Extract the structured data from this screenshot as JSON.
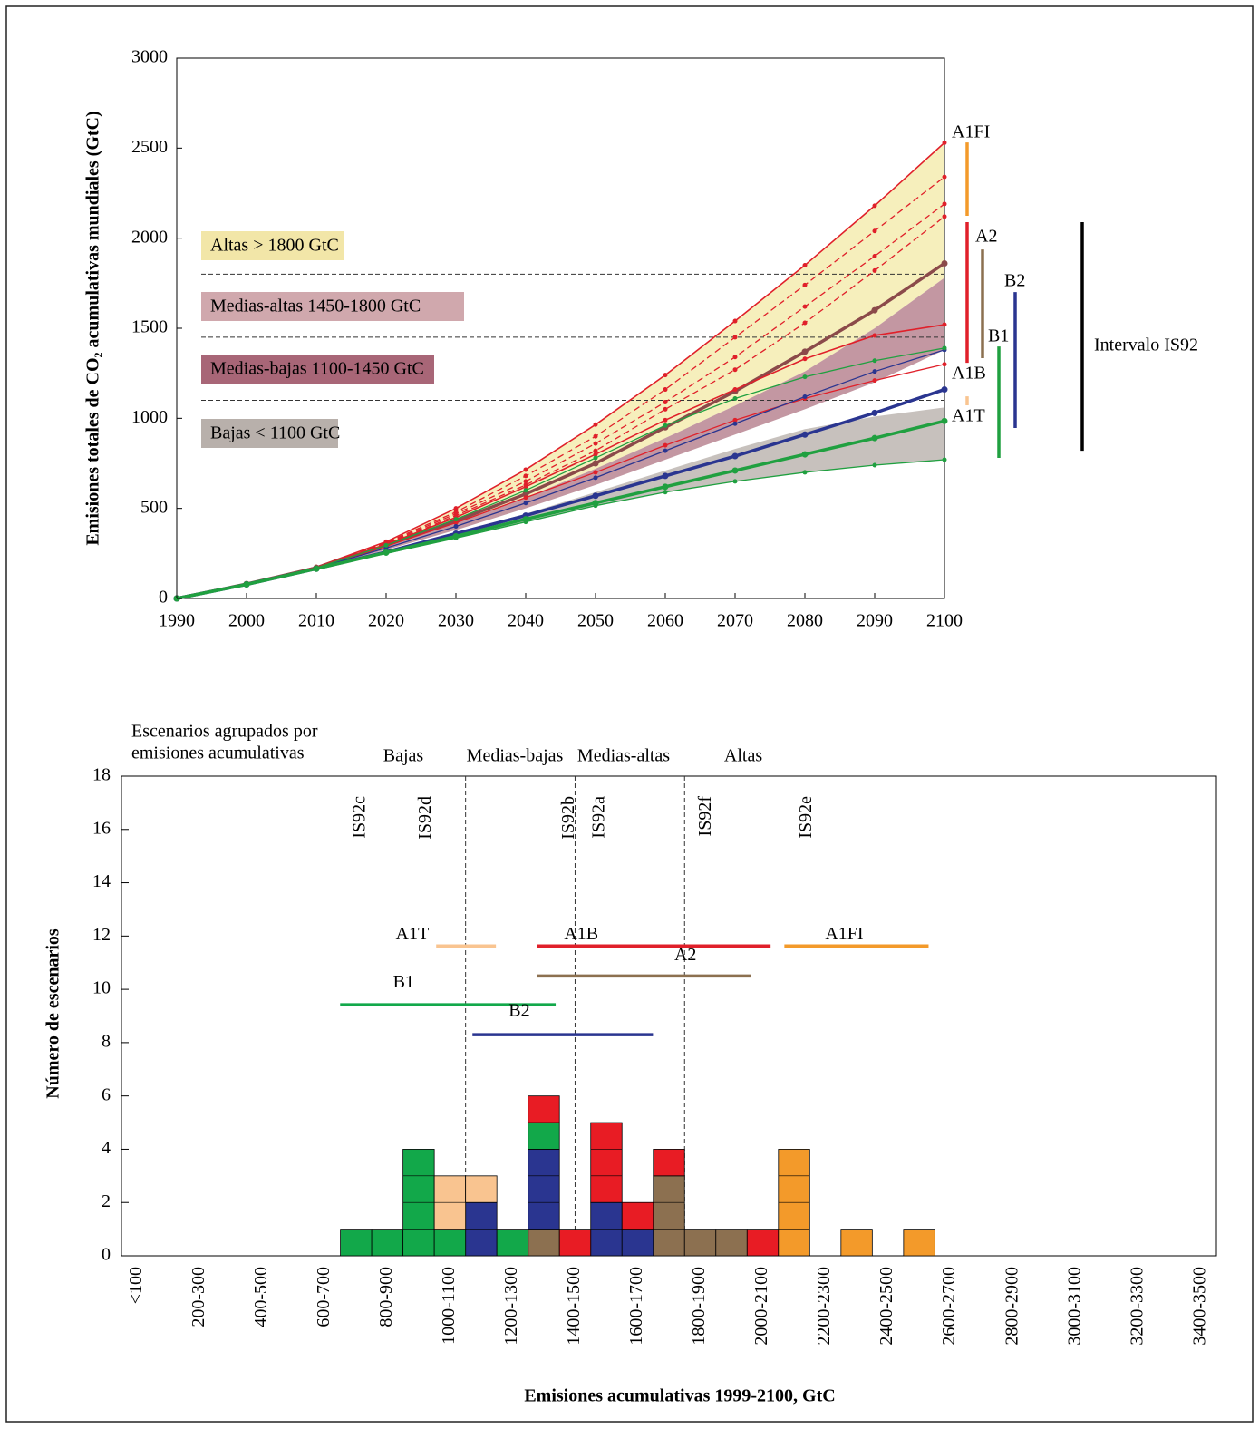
{
  "chart_data": [
    {
      "type": "line",
      "ylabel": "Emisiones totales de CO₂ acumulativas mundiales (GtC)",
      "x": [
        1990,
        2000,
        2010,
        2020,
        2030,
        2040,
        2050,
        2060,
        2070,
        2080,
        2090,
        2100
      ],
      "xlim": [
        1990,
        2100
      ],
      "xticks": [
        1990,
        2000,
        2010,
        2020,
        2030,
        2040,
        2050,
        2060,
        2070,
        2080,
        2090,
        2100
      ],
      "ylim": [
        0,
        3000
      ],
      "yticks": [
        0,
        500,
        1000,
        1500,
        2000,
        2500,
        3000
      ],
      "bands": [
        {
          "color": "#f4ecb0",
          "upper": [
            0,
            80,
            175,
            315,
            500,
            715,
            965,
            1240,
            1540,
            1850,
            2180,
            2530
          ],
          "lower": [
            0,
            79,
            168,
            290,
            420,
            560,
            720,
            890,
            1070,
            1260,
            1500,
            1780
          ]
        },
        {
          "color": "#b98592",
          "upper": [
            0,
            79,
            168,
            290,
            420,
            560,
            720,
            890,
            1070,
            1260,
            1500,
            1780
          ],
          "lower": [
            0,
            78,
            166,
            270,
            380,
            500,
            630,
            770,
            910,
            1050,
            1200,
            1380
          ]
        },
        {
          "color": "#bdb6b1",
          "upper": [
            0,
            78,
            166,
            262,
            365,
            470,
            590,
            710,
            830,
            940,
            1010,
            1060
          ],
          "lower": [
            0,
            78,
            165,
            250,
            335,
            425,
            515,
            590,
            650,
            700,
            740,
            770
          ]
        }
      ],
      "series": [
        {
          "color": "#e0202a",
          "width": 1.6,
          "dashed": false,
          "values": [
            0,
            80,
            175,
            315,
            500,
            715,
            965,
            1240,
            1540,
            1850,
            2180,
            2530
          ]
        },
        {
          "color": "#e0202a",
          "width": 1.3,
          "dashed": true,
          "values": [
            0,
            80,
            175,
            310,
            480,
            680,
            900,
            1160,
            1450,
            1740,
            2040,
            2340
          ]
        },
        {
          "color": "#e0202a",
          "width": 1.3,
          "dashed": true,
          "values": [
            0,
            80,
            172,
            305,
            470,
            650,
            860,
            1090,
            1340,
            1620,
            1900,
            2190
          ]
        },
        {
          "color": "#e0202a",
          "width": 1.3,
          "dashed": true,
          "values": [
            0,
            78,
            170,
            300,
            460,
            630,
            820,
            1050,
            1270,
            1530,
            1820,
            2120
          ]
        },
        {
          "color": "#8b4a4a",
          "width": 3.5,
          "dashed": false,
          "values": [
            0,
            80,
            170,
            295,
            430,
            580,
            750,
            950,
            1150,
            1370,
            1600,
            1860
          ]
        },
        {
          "color": "#e0202a",
          "width": 1.6,
          "dashed": false,
          "values": [
            0,
            80,
            172,
            300,
            450,
            620,
            800,
            990,
            1160,
            1330,
            1460,
            1520
          ]
        },
        {
          "color": "#e0202a",
          "width": 1.3,
          "dashed": false,
          "values": [
            0,
            78,
            168,
            290,
            420,
            560,
            700,
            850,
            990,
            1110,
            1210,
            1300
          ]
        },
        {
          "color": "#2a3590",
          "width": 1.3,
          "dashed": false,
          "values": [
            0,
            80,
            168,
            280,
            400,
            530,
            670,
            820,
            970,
            1120,
            1260,
            1380
          ]
        },
        {
          "color": "#2a3590",
          "width": 3.5,
          "dashed": false,
          "values": [
            0,
            78,
            165,
            258,
            360,
            460,
            570,
            680,
            790,
            910,
            1030,
            1160
          ]
        },
        {
          "color": "#20a040",
          "width": 1.3,
          "dashed": false,
          "values": [
            0,
            80,
            170,
            295,
            440,
            600,
            780,
            960,
            1110,
            1230,
            1320,
            1390
          ]
        },
        {
          "color": "#20a040",
          "width": 3.5,
          "dashed": false,
          "values": [
            0,
            78,
            165,
            255,
            345,
            440,
            530,
            620,
            710,
            800,
            890,
            985
          ]
        },
        {
          "color": "#20a040",
          "width": 1.3,
          "dashed": false,
          "values": [
            0,
            78,
            165,
            250,
            335,
            425,
            515,
            590,
            650,
            700,
            740,
            770
          ]
        }
      ],
      "threshold_lines": [
        1800,
        1450,
        1100
      ],
      "classes": [
        {
          "label": "Altas > 1800 GtC",
          "color": "#f2e6a8"
        },
        {
          "label": "Medias-altas 1450-1800 GtC",
          "color": "#d0a8ad"
        },
        {
          "label": "Medias-bajas 1100-1450 GtC",
          "color": "#a86677"
        },
        {
          "label": "Bajas < 1100 GtC",
          "color": "#b8b0ab"
        }
      ],
      "ranges": [
        {
          "name": "A1FI",
          "color": "#f39a2a",
          "min": 2124,
          "max": 2531
        },
        {
          "name": "A2",
          "color": "#8c7050",
          "min": 1334,
          "max": 1937
        },
        {
          "name": "B2",
          "color": "#2a3590",
          "min": 946,
          "max": 1701
        },
        {
          "name": "B1",
          "color": "#20a040",
          "min": 780,
          "max": 1399
        },
        {
          "name": "A1B",
          "color": "#e0202a",
          "min": 1308,
          "max": 2089
        },
        {
          "name": "A1T",
          "color": "#f9c490",
          "min": 1072,
          "max": 1122
        },
        {
          "name": "Intervalo IS92",
          "color": "#000000",
          "min": 820,
          "max": 2089
        }
      ]
    },
    {
      "type": "bar",
      "title": [
        "Escenarios agrupados por",
        "emisiones acumulativas"
      ],
      "groups": [
        "Bajas",
        "Medias-bajas",
        "Medias-altas",
        "Altas"
      ],
      "xlabel": "Emisiones acumulativas 1999-2100, GtC",
      "ylabel": "Número de escenarios",
      "xlim": [
        0,
        3500
      ],
      "categories": [
        "<100",
        null,
        "200-300",
        null,
        "400-500",
        null,
        "600-700",
        null,
        "800-900",
        null,
        "1000-1100",
        null,
        "1200-1300",
        null,
        "1400-1500",
        null,
        "1600-1700",
        null,
        "1800-1900",
        null,
        "2000-2100",
        null,
        "2200-2300",
        null,
        "2400-2500",
        null,
        "2600-2700",
        null,
        "2800-2900",
        null,
        "3000-3100",
        null,
        "3200-3300",
        null,
        "3400-3500"
      ],
      "ylim": [
        0,
        18
      ],
      "yticks": [
        0,
        2,
        4,
        6,
        8,
        10,
        12,
        14,
        16,
        18
      ],
      "series": [
        {
          "color": "#8c7050",
          "values": [
            0,
            0,
            0,
            0,
            0,
            0,
            0,
            0,
            0,
            0,
            0,
            0,
            0,
            1,
            0,
            0,
            0,
            3,
            1,
            1,
            0,
            0,
            0,
            0,
            0,
            0,
            0,
            0,
            0,
            0,
            0,
            0,
            0,
            0,
            0
          ]
        },
        {
          "color": "#2a3590",
          "values": [
            0,
            0,
            0,
            0,
            0,
            0,
            0,
            0,
            0,
            0,
            0,
            2,
            0,
            3,
            0,
            2,
            1,
            0,
            0,
            0,
            0,
            0,
            0,
            0,
            0,
            0,
            0,
            0,
            0,
            0,
            0,
            0,
            0,
            0,
            0
          ]
        },
        {
          "color": "#12a84a",
          "values": [
            0,
            0,
            0,
            0,
            0,
            0,
            0,
            1,
            1,
            4,
            1,
            0,
            1,
            1,
            0,
            0,
            0,
            0,
            0,
            0,
            0,
            0,
            0,
            0,
            0,
            0,
            0,
            0,
            0,
            0,
            0,
            0,
            0,
            0,
            0
          ]
        },
        {
          "color": "#f9c490",
          "values": [
            0,
            0,
            0,
            0,
            0,
            0,
            0,
            0,
            0,
            0,
            2,
            1,
            0,
            0,
            0,
            0,
            0,
            0,
            0,
            0,
            0,
            0,
            0,
            0,
            0,
            0,
            0,
            0,
            0,
            0,
            0,
            0,
            0,
            0,
            0
          ]
        },
        {
          "color": "#e81c24",
          "values": [
            0,
            0,
            0,
            0,
            0,
            0,
            0,
            0,
            0,
            0,
            0,
            0,
            0,
            1,
            1,
            3,
            1,
            1,
            0,
            0,
            1,
            0,
            0,
            0,
            0,
            0,
            0,
            0,
            0,
            0,
            0,
            0,
            0,
            0,
            0
          ]
        },
        {
          "color": "#f39a2a",
          "values": [
            0,
            0,
            0,
            0,
            0,
            0,
            0,
            0,
            0,
            0,
            0,
            0,
            0,
            0,
            0,
            0,
            0,
            0,
            0,
            0,
            0,
            4,
            0,
            1,
            0,
            1,
            0,
            0,
            0,
            0,
            0,
            0,
            0,
            0,
            0
          ]
        }
      ],
      "dividers": [
        1100,
        1450,
        1800
      ],
      "ranges": [
        {
          "name": "A1T",
          "color": "#f9c490",
          "min": 1006,
          "max": 1197,
          "y": 11.63
        },
        {
          "name": "A1B",
          "color": "#e0202a",
          "min": 1328,
          "max": 2075,
          "y": 11.63
        },
        {
          "name": "A1FI",
          "color": "#f39a2a",
          "min": 2119,
          "max": 2580,
          "y": 11.63
        },
        {
          "name": "A2",
          "color": "#8c7050",
          "min": 1328,
          "max": 2012,
          "y": 10.5
        },
        {
          "name": "B1",
          "color": "#12a84a",
          "min": 699,
          "max": 1388,
          "y": 9.42
        },
        {
          "name": "B2",
          "color": "#2a3590",
          "min": 1122,
          "max": 1699,
          "y": 8.3
        }
      ],
      "markers": [
        {
          "label": "IS92c",
          "x": 765
        },
        {
          "label": "IS92d",
          "x": 974
        },
        {
          "label": "IS92b",
          "x": 1432
        },
        {
          "label": "IS92a",
          "x": 1530
        },
        {
          "label": "IS92f",
          "x": 1870
        },
        {
          "label": "IS92e",
          "x": 2191
        }
      ]
    }
  ]
}
